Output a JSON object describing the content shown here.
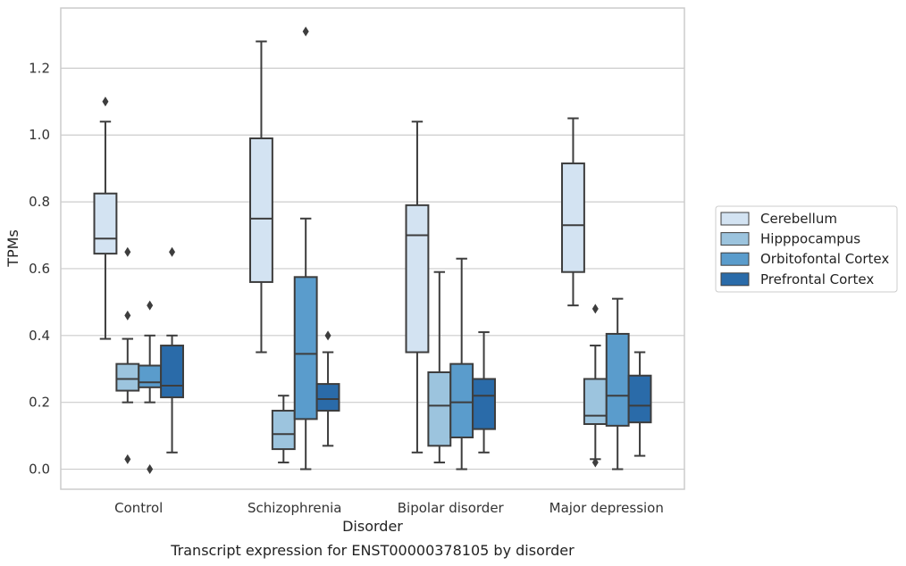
{
  "caption": "Transcript expression for ENST00000378105 by disorder",
  "chart_data": {
    "type": "boxplot",
    "xlabel": "Disorder",
    "ylabel": "TPMs",
    "ylim": [
      -0.06,
      1.38
    ],
    "yticks": [
      "0.0",
      "0.2",
      "0.4",
      "0.6",
      "0.8",
      "1.0",
      "1.2"
    ],
    "grid": true,
    "legend_position": "right",
    "categories": [
      "Control",
      "Schizophrenia",
      "Bipolar disorder",
      "Major depression"
    ],
    "series": [
      {
        "name": "Cerebellum",
        "color": "#d3e3f2",
        "boxes": [
          {
            "whislo": 0.39,
            "q1": 0.645,
            "med": 0.69,
            "q3": 0.825,
            "whishi": 1.04,
            "fliers": [
              1.1
            ]
          },
          {
            "whislo": 0.35,
            "q1": 0.56,
            "med": 0.75,
            "q3": 0.99,
            "whishi": 1.28,
            "fliers": []
          },
          {
            "whislo": 0.05,
            "q1": 0.35,
            "med": 0.7,
            "q3": 0.79,
            "whishi": 1.04,
            "fliers": []
          },
          {
            "whislo": 0.49,
            "q1": 0.59,
            "med": 0.73,
            "q3": 0.915,
            "whishi": 1.05,
            "fliers": []
          }
        ]
      },
      {
        "name": "Hipppocampus",
        "color": "#9cc4de",
        "boxes": [
          {
            "whislo": 0.2,
            "q1": 0.235,
            "med": 0.27,
            "q3": 0.315,
            "whishi": 0.39,
            "fliers": [
              0.65,
              0.46,
              0.03
            ]
          },
          {
            "whislo": 0.02,
            "q1": 0.06,
            "med": 0.105,
            "q3": 0.175,
            "whishi": 0.22,
            "fliers": []
          },
          {
            "whislo": 0.02,
            "q1": 0.07,
            "med": 0.19,
            "q3": 0.29,
            "whishi": 0.59,
            "fliers": []
          },
          {
            "whislo": 0.03,
            "q1": 0.135,
            "med": 0.16,
            "q3": 0.27,
            "whishi": 0.37,
            "fliers": [
              0.48,
              0.02
            ]
          }
        ]
      },
      {
        "name": "Orbitofontal Cortex",
        "color": "#5a9ccc",
        "boxes": [
          {
            "whislo": 0.2,
            "q1": 0.245,
            "med": 0.26,
            "q3": 0.31,
            "whishi": 0.4,
            "fliers": [
              0.49,
              0.0
            ]
          },
          {
            "whislo": 0.0,
            "q1": 0.15,
            "med": 0.345,
            "q3": 0.575,
            "whishi": 0.75,
            "fliers": [
              1.31
            ]
          },
          {
            "whislo": 0.0,
            "q1": 0.095,
            "med": 0.2,
            "q3": 0.315,
            "whishi": 0.63,
            "fliers": []
          },
          {
            "whislo": 0.0,
            "q1": 0.13,
            "med": 0.22,
            "q3": 0.405,
            "whishi": 0.51,
            "fliers": []
          }
        ]
      },
      {
        "name": "Prefrontal Cortex",
        "color": "#2a6ba9",
        "boxes": [
          {
            "whislo": 0.05,
            "q1": 0.215,
            "med": 0.25,
            "q3": 0.37,
            "whishi": 0.4,
            "fliers": [
              0.65
            ]
          },
          {
            "whislo": 0.07,
            "q1": 0.175,
            "med": 0.21,
            "q3": 0.255,
            "whishi": 0.35,
            "fliers": [
              0.4
            ]
          },
          {
            "whislo": 0.05,
            "q1": 0.12,
            "med": 0.22,
            "q3": 0.27,
            "whishi": 0.41,
            "fliers": []
          },
          {
            "whislo": 0.04,
            "q1": 0.14,
            "med": 0.19,
            "q3": 0.28,
            "whishi": 0.35,
            "fliers": []
          }
        ]
      }
    ]
  }
}
